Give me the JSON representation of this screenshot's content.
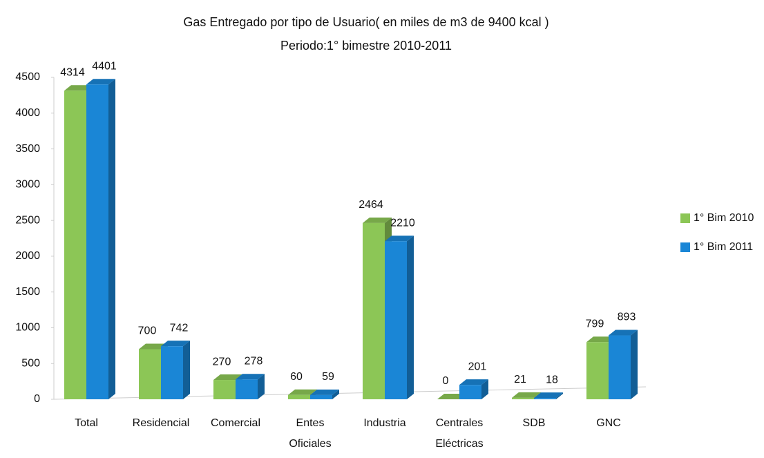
{
  "chart_data": {
    "type": "bar",
    "title": "Gas Entregado por tipo de Usuario( en miles de m3 de 9400 kcal )",
    "subtitle": "Periodo:1° bimestre 2010-2011",
    "categories": [
      "Total",
      "Residencial",
      "Comercial",
      "Entes Oficiales",
      "Industria",
      "Centrales Eléctricas",
      "SDB",
      "GNC"
    ],
    "series": [
      {
        "name": "1° Bim 2010",
        "color": "#8cc656",
        "values": [
          4314,
          700,
          270,
          60,
          2464,
          0,
          21,
          799
        ]
      },
      {
        "name": "1° Bim 2011",
        "color": "#1a86d6",
        "values": [
          4401,
          742,
          278,
          59,
          2210,
          201,
          18,
          893
        ]
      }
    ],
    "ylim": [
      0,
      4500
    ],
    "yticks": [
      0,
      500,
      1000,
      1500,
      2000,
      2500,
      3000,
      3500,
      4000,
      4500
    ],
    "grid": false,
    "legend": "right"
  }
}
